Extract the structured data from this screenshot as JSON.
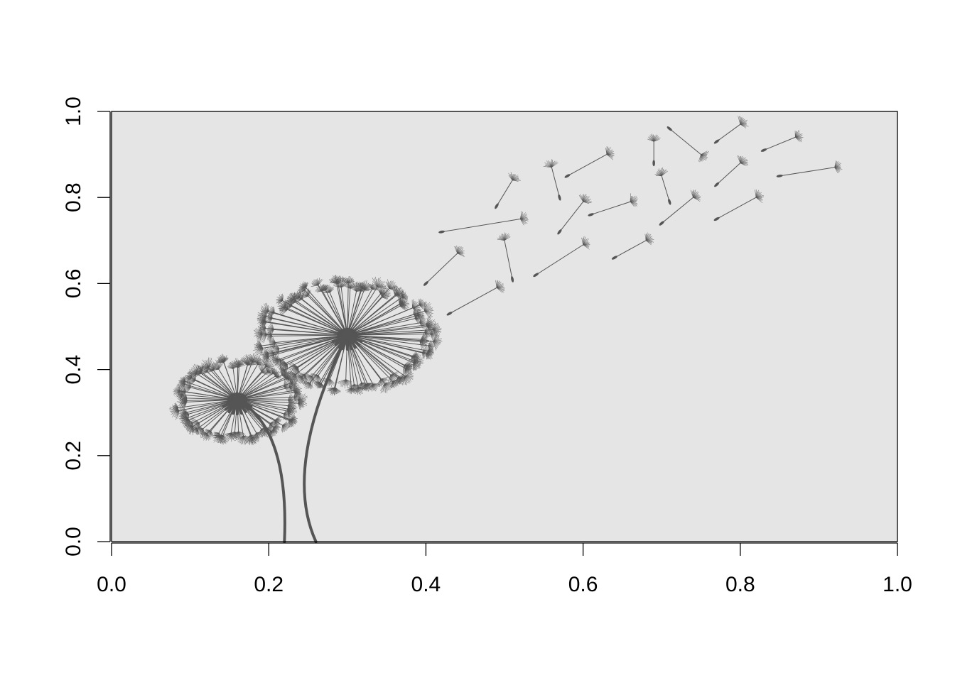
{
  "chart_data": {
    "type": "scatter",
    "title": "",
    "xlabel": "",
    "ylabel": "",
    "xlim": [
      0,
      1
    ],
    "ylim": [
      0,
      1
    ],
    "xticks": [
      "0.0",
      "0.2",
      "0.4",
      "0.6",
      "0.8",
      "1.0"
    ],
    "yticks": [
      "0.0",
      "0.2",
      "0.4",
      "0.6",
      "0.8",
      "1.0"
    ],
    "grid": false,
    "colors": {
      "panel": "#e5e5e5",
      "ink": "#555555",
      "axis": "#000000"
    },
    "series": [
      {
        "kind": "dandelion-head",
        "points": [
          {
            "x": 0.16,
            "y": 0.33,
            "size": 0.3
          },
          {
            "x": 0.3,
            "y": 0.48,
            "size": 0.42
          }
        ]
      },
      {
        "kind": "stem",
        "points": [
          {
            "from": [
              0.16,
              0.33
            ],
            "to": [
              0.22,
              0.0
            ]
          },
          {
            "from": [
              0.3,
              0.48
            ],
            "to": [
              0.26,
              0.0
            ]
          }
        ]
      },
      {
        "kind": "floating-seed",
        "points": [
          {
            "x": 0.52,
            "y": 0.75,
            "to": [
              0.42,
              0.72
            ]
          },
          {
            "x": 0.44,
            "y": 0.67,
            "to": [
              0.4,
              0.6
            ]
          },
          {
            "x": 0.49,
            "y": 0.59,
            "to": [
              0.43,
              0.53
            ]
          },
          {
            "x": 0.5,
            "y": 0.7,
            "to": [
              0.51,
              0.61
            ]
          },
          {
            "x": 0.51,
            "y": 0.84,
            "to": [
              0.49,
              0.78
            ]
          },
          {
            "x": 0.56,
            "y": 0.87,
            "to": [
              0.57,
              0.8
            ]
          },
          {
            "x": 0.6,
            "y": 0.79,
            "to": [
              0.57,
              0.72
            ]
          },
          {
            "x": 0.63,
            "y": 0.9,
            "to": [
              0.58,
              0.85
            ]
          },
          {
            "x": 0.6,
            "y": 0.69,
            "to": [
              0.54,
              0.62
            ]
          },
          {
            "x": 0.66,
            "y": 0.79,
            "to": [
              0.61,
              0.76
            ]
          },
          {
            "x": 0.69,
            "y": 0.93,
            "to": [
              0.69,
              0.88
            ]
          },
          {
            "x": 0.7,
            "y": 0.85,
            "to": [
              0.71,
              0.79
            ]
          },
          {
            "x": 0.68,
            "y": 0.7,
            "to": [
              0.64,
              0.66
            ]
          },
          {
            "x": 0.75,
            "y": 0.9,
            "to": [
              0.71,
              0.96
            ]
          },
          {
            "x": 0.74,
            "y": 0.8,
            "to": [
              0.7,
              0.74
            ]
          },
          {
            "x": 0.8,
            "y": 0.97,
            "to": [
              0.77,
              0.93
            ]
          },
          {
            "x": 0.8,
            "y": 0.88,
            "to": [
              0.77,
              0.83
            ]
          },
          {
            "x": 0.82,
            "y": 0.8,
            "to": [
              0.77,
              0.75
            ]
          },
          {
            "x": 0.87,
            "y": 0.94,
            "to": [
              0.83,
              0.91
            ]
          },
          {
            "x": 0.92,
            "y": 0.87,
            "to": [
              0.85,
              0.85
            ]
          }
        ]
      }
    ]
  }
}
